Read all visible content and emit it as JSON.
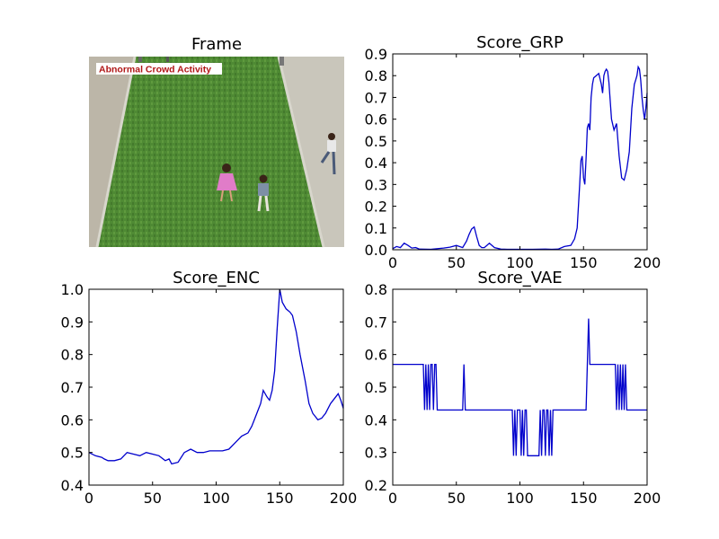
{
  "frame_panel": {
    "title": "Frame",
    "overlay_label": "Abnormal Crowd Activity",
    "label_color": "#b01616"
  },
  "line_color": "#0000cc",
  "chart_data": [
    {
      "type": "line",
      "title": "Score_GRP",
      "xlim": [
        0,
        200
      ],
      "ylim": [
        0,
        0.9
      ],
      "xticks": [
        "0",
        "50",
        "100",
        "150",
        "200"
      ],
      "yticks": [
        "0.0",
        "0.1",
        "0.2",
        "0.3",
        "0.4",
        "0.5",
        "0.6",
        "0.7",
        "0.8",
        "0.9"
      ],
      "x": [
        0,
        3,
        6,
        9,
        12,
        15,
        18,
        21,
        30,
        40,
        45,
        50,
        55,
        58,
        60,
        62,
        64,
        66,
        68,
        70,
        72,
        74,
        76,
        78,
        80,
        85,
        90,
        100,
        110,
        120,
        125,
        130,
        135,
        140,
        143,
        145,
        147,
        148,
        149,
        150,
        151,
        152,
        153,
        154,
        155,
        156,
        157,
        158,
        160,
        162,
        164,
        165,
        166,
        167,
        168,
        169,
        170,
        172,
        174,
        176,
        178,
        180,
        182,
        184,
        186,
        188,
        190,
        191,
        192,
        193,
        194,
        195,
        196,
        197,
        198,
        199,
        200
      ],
      "y": [
        0.005,
        0.015,
        0.01,
        0.03,
        0.02,
        0.008,
        0.01,
        0.003,
        0.002,
        0.008,
        0.012,
        0.02,
        0.01,
        0.04,
        0.07,
        0.095,
        0.105,
        0.06,
        0.02,
        0.01,
        0.01,
        0.02,
        0.03,
        0.02,
        0.01,
        0.003,
        0.002,
        0.002,
        0.002,
        0.003,
        0.002,
        0.003,
        0.015,
        0.02,
        0.05,
        0.1,
        0.3,
        0.41,
        0.43,
        0.33,
        0.3,
        0.42,
        0.56,
        0.58,
        0.55,
        0.7,
        0.76,
        0.79,
        0.8,
        0.81,
        0.76,
        0.72,
        0.8,
        0.82,
        0.83,
        0.82,
        0.77,
        0.6,
        0.55,
        0.58,
        0.43,
        0.33,
        0.32,
        0.37,
        0.45,
        0.65,
        0.76,
        0.78,
        0.8,
        0.84,
        0.83,
        0.78,
        0.7,
        0.64,
        0.6,
        0.65,
        0.72
      ]
    },
    {
      "type": "line",
      "title": "Score_ENC",
      "xlim": [
        0,
        200
      ],
      "ylim": [
        0.4,
        1.0
      ],
      "xticks": [
        "0",
        "50",
        "100",
        "150",
        "200"
      ],
      "yticks": [
        "0.4",
        "0.5",
        "0.6",
        "0.7",
        "0.8",
        "0.9",
        "1.0"
      ],
      "x": [
        0,
        5,
        10,
        12,
        15,
        20,
        25,
        30,
        35,
        40,
        45,
        50,
        55,
        60,
        63,
        65,
        70,
        75,
        80,
        85,
        90,
        95,
        100,
        105,
        110,
        115,
        120,
        125,
        128,
        130,
        133,
        135,
        137,
        140,
        142,
        144,
        146,
        148,
        150,
        152,
        155,
        158,
        160,
        163,
        166,
        170,
        173,
        176,
        180,
        183,
        186,
        190,
        193,
        196,
        198,
        200
      ],
      "y": [
        0.5,
        0.49,
        0.485,
        0.48,
        0.475,
        0.475,
        0.48,
        0.5,
        0.495,
        0.49,
        0.5,
        0.495,
        0.49,
        0.475,
        0.48,
        0.465,
        0.47,
        0.5,
        0.51,
        0.5,
        0.5,
        0.505,
        0.505,
        0.505,
        0.51,
        0.53,
        0.55,
        0.56,
        0.58,
        0.6,
        0.63,
        0.65,
        0.69,
        0.67,
        0.66,
        0.69,
        0.75,
        0.88,
        1.0,
        0.96,
        0.94,
        0.93,
        0.92,
        0.87,
        0.8,
        0.72,
        0.65,
        0.62,
        0.6,
        0.605,
        0.62,
        0.65,
        0.665,
        0.68,
        0.66,
        0.635
      ]
    },
    {
      "type": "line",
      "title": "Score_VAE",
      "xlim": [
        0,
        200
      ],
      "ylim": [
        0.2,
        0.8
      ],
      "xticks": [
        "0",
        "50",
        "100",
        "150",
        "200"
      ],
      "yticks": [
        "0.2",
        "0.3",
        "0.4",
        "0.5",
        "0.6",
        "0.7",
        "0.8"
      ],
      "x": [
        0,
        24,
        25,
        26,
        27,
        28,
        29,
        30,
        31,
        32,
        33,
        34,
        35,
        36,
        55,
        56,
        57,
        94,
        95,
        96,
        97,
        98,
        99,
        100,
        101,
        102,
        103,
        104,
        105,
        106,
        108,
        109,
        115,
        116,
        117,
        118,
        119,
        120,
        121,
        122,
        123,
        124,
        125,
        126,
        127,
        152,
        153,
        154,
        155,
        175,
        176,
        177,
        178,
        179,
        180,
        181,
        182,
        183,
        184,
        185,
        200
      ],
      "y": [
        0.57,
        0.57,
        0.43,
        0.57,
        0.43,
        0.57,
        0.43,
        0.57,
        0.57,
        0.43,
        0.57,
        0.57,
        0.43,
        0.43,
        0.43,
        0.57,
        0.43,
        0.43,
        0.29,
        0.43,
        0.29,
        0.43,
        0.43,
        0.43,
        0.29,
        0.43,
        0.29,
        0.43,
        0.43,
        0.29,
        0.29,
        0.29,
        0.29,
        0.43,
        0.29,
        0.43,
        0.43,
        0.29,
        0.43,
        0.43,
        0.29,
        0.43,
        0.29,
        0.43,
        0.43,
        0.43,
        0.57,
        0.71,
        0.57,
        0.57,
        0.43,
        0.57,
        0.43,
        0.57,
        0.43,
        0.57,
        0.43,
        0.57,
        0.43,
        0.43,
        0.43
      ]
    }
  ]
}
